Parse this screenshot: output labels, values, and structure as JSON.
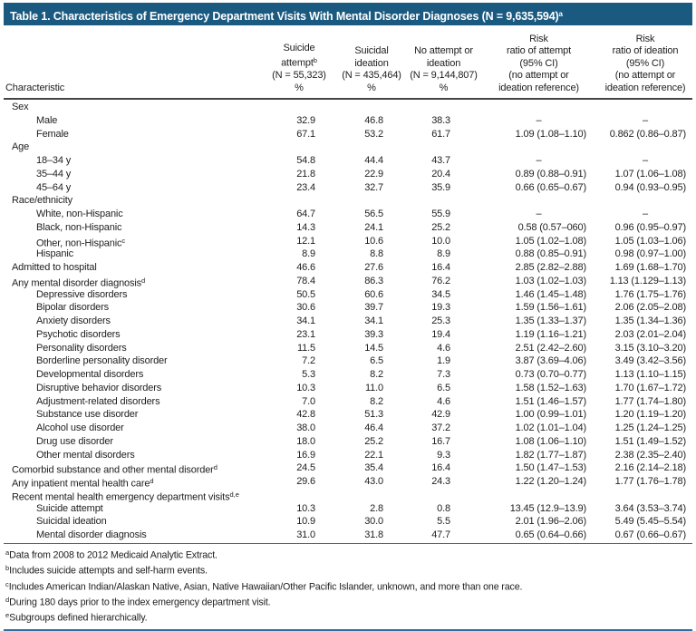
{
  "title": {
    "text": "Table 1. Characteristics of Emergency Department Visits With Mental Disorder Diagnoses (N = 9,635,594)",
    "sup": "a"
  },
  "colors": {
    "title_bar_bg": "#1B5A80",
    "rule_blue": "#2F6F9F",
    "text": "#1E1E1E"
  },
  "columns": [
    {
      "key": "characteristic",
      "lines": [
        "Characteristic"
      ]
    },
    {
      "key": "suicide-attempt-pct",
      "lines": [
        "Suicide",
        "attempt{b}",
        "(N = 55,323)",
        "%"
      ]
    },
    {
      "key": "suicidal-ideation-pct",
      "lines": [
        "Suicidal",
        "ideation",
        "(N = 435,464)",
        "%"
      ]
    },
    {
      "key": "no-attempt-or-ideation-pct",
      "lines": [
        "No attempt or",
        "ideation",
        "(N = 9,144,807)",
        "%"
      ]
    },
    {
      "key": "risk-ratio-attempt",
      "lines": [
        "Risk",
        "ratio of attempt",
        "(95% CI)",
        "(no attempt or",
        "ideation reference)"
      ]
    },
    {
      "key": "risk-ratio-ideation",
      "lines": [
        "Risk",
        "ratio of ideation",
        "(95% CI)",
        "(no attempt or",
        "ideation reference)"
      ]
    }
  ],
  "rows": [
    {
      "label": "Sex",
      "indent": 0,
      "values": [
        "",
        "",
        "",
        "",
        ""
      ]
    },
    {
      "label": "Male",
      "indent": 1,
      "values": [
        "32.9",
        "46.8",
        "38.3",
        "–",
        "–"
      ]
    },
    {
      "label": "Female",
      "indent": 1,
      "values": [
        "67.1",
        "53.2",
        "61.7",
        "1.09 (1.08–1.10)",
        "0.862 (0.86–0.87)"
      ]
    },
    {
      "label": "Age",
      "indent": 0,
      "values": [
        "",
        "",
        "",
        "",
        ""
      ]
    },
    {
      "label": "18–34 y",
      "indent": 1,
      "values": [
        "54.8",
        "44.4",
        "43.7",
        "–",
        "–"
      ]
    },
    {
      "label": "35–44 y",
      "indent": 1,
      "values": [
        "21.8",
        "22.9",
        "20.4",
        "0.89 (0.88–0.91)",
        "1.07 (1.06–1.08)"
      ]
    },
    {
      "label": "45–64 y",
      "indent": 1,
      "values": [
        "23.4",
        "32.7",
        "35.9",
        "0.66 (0.65–0.67)",
        "0.94 (0.93–0.95)"
      ]
    },
    {
      "label": "Race/ethnicity",
      "indent": 0,
      "values": [
        "",
        "",
        "",
        "",
        ""
      ]
    },
    {
      "label": "White, non-Hispanic",
      "indent": 1,
      "values": [
        "64.7",
        "56.5",
        "55.9",
        "–",
        "–"
      ]
    },
    {
      "label": "Black, non-Hispanic",
      "indent": 1,
      "values": [
        "14.3",
        "24.1",
        "25.2",
        "0.58 (0.57–060)",
        "0.96 (0.95–0.97)"
      ]
    },
    {
      "label": "Other, non-Hispanic{c}",
      "indent": 1,
      "values": [
        "12.1",
        "10.6",
        "10.0",
        "1.05 (1.02–1.08)",
        "1.05 (1.03–1.06)"
      ]
    },
    {
      "label": "Hispanic",
      "indent": 1,
      "values": [
        "8.9",
        "8.8",
        "8.9",
        "0.88 (0.85–0.91)",
        "0.98 (0.97–1.00)"
      ]
    },
    {
      "label": "Admitted to hospital",
      "indent": 0,
      "values": [
        "46.6",
        "27.6",
        "16.4",
        "2.85 (2.82–2.88)",
        "1.69 (1.68–1.70)"
      ]
    },
    {
      "label": "Any mental disorder diagnosis{d}",
      "indent": 0,
      "values": [
        "78.4",
        "86.3",
        "76.2",
        "1.03 (1.02–1.03)",
        "1.13 (1.129–1.13)"
      ]
    },
    {
      "label": "Depressive disorders",
      "indent": 1,
      "values": [
        "50.5",
        "60.6",
        "34.5",
        "1.46 (1.45–1.48)",
        "1.76 (1.75–1.76)"
      ]
    },
    {
      "label": "Bipolar disorders",
      "indent": 1,
      "values": [
        "30.6",
        "39.7",
        "19.3",
        "1.59 (1.56–1.61)",
        "2.06 (2.05–2.08)"
      ]
    },
    {
      "label": "Anxiety disorders",
      "indent": 1,
      "values": [
        "34.1",
        "34.1",
        "25.3",
        "1.35 (1.33–1.37)",
        "1.35 (1.34–1.36)"
      ]
    },
    {
      "label": "Psychotic disorders",
      "indent": 1,
      "values": [
        "23.1",
        "39.3",
        "19.4",
        "1.19 (1.16–1.21)",
        "2.03 (2.01–2.04)"
      ]
    },
    {
      "label": "Personality disorders",
      "indent": 1,
      "values": [
        "11.5",
        "14.5",
        "4.6",
        "2.51 (2.42–2.60)",
        "3.15 (3.10–3.20)"
      ]
    },
    {
      "label": "Borderline personality disorder",
      "indent": 1,
      "values": [
        "7.2",
        "6.5",
        "1.9",
        "3.87 (3.69–4.06)",
        "3.49 (3.42–3.56)"
      ]
    },
    {
      "label": "Developmental disorders",
      "indent": 1,
      "values": [
        "5.3",
        "8.2",
        "7.3",
        "0.73 (0.70–0.77)",
        "1.13 (1.10–1.15)"
      ]
    },
    {
      "label": "Disruptive behavior disorders",
      "indent": 1,
      "values": [
        "10.3",
        "11.0",
        "6.5",
        "1.58 (1.52–1.63)",
        "1.70 (1.67–1.72)"
      ]
    },
    {
      "label": "Adjustment-related disorders",
      "indent": 1,
      "values": [
        "7.0",
        "8.2",
        "4.6",
        "1.51 (1.46–1.57)",
        "1.77 (1.74–1.80)"
      ]
    },
    {
      "label": "Substance use disorder",
      "indent": 1,
      "values": [
        "42.8",
        "51.3",
        "42.9",
        "1.00 (0.99–1.01)",
        "1.20 (1.19–1.20)"
      ]
    },
    {
      "label": "Alcohol use disorder",
      "indent": 1,
      "values": [
        "38.0",
        "46.4",
        "37.2",
        "1.02 (1.01–1.04)",
        "1.25 (1.24–1.25)"
      ]
    },
    {
      "label": "Drug use disorder",
      "indent": 1,
      "values": [
        "18.0",
        "25.2",
        "16.7",
        "1.08 (1.06–1.10)",
        "1.51 (1.49–1.52)"
      ]
    },
    {
      "label": "Other mental disorders",
      "indent": 1,
      "values": [
        "16.9",
        "22.1",
        "9.3",
        "1.82 (1.77–1.87)",
        "2.38 (2.35–2.40)"
      ]
    },
    {
      "label": "Comorbid substance and other mental disorder{d}",
      "indent": 0,
      "values": [
        "24.5",
        "35.4",
        "16.4",
        "1.50 (1.47–1.53)",
        "2.16 (2.14–2.18)"
      ]
    },
    {
      "label": "Any inpatient mental health care{d}",
      "indent": 0,
      "values": [
        "29.6",
        "43.0",
        "24.3",
        "1.22 (1.20–1.24)",
        "1.77 (1.76–1.78)"
      ]
    },
    {
      "label": "Recent mental health emergency department visits{d,e}",
      "indent": 0,
      "values": [
        "",
        "",
        "",
        "",
        ""
      ]
    },
    {
      "label": "Suicide attempt",
      "indent": 1,
      "values": [
        "10.3",
        "2.8",
        "0.8",
        "13.45 (12.9–13.9)",
        "3.64 (3.53–3.74)"
      ]
    },
    {
      "label": "Suicidal ideation",
      "indent": 1,
      "values": [
        "10.9",
        "30.0",
        "5.5",
        "2.01 (1.96–2.06)",
        "5.49 (5.45–5.54)"
      ]
    },
    {
      "label": "Mental disorder diagnosis",
      "indent": 1,
      "values": [
        "31.0",
        "31.8",
        "47.7",
        "0.65 (0.64–0.66)",
        "0.67 (0.66–0.67)"
      ]
    }
  ],
  "footnotes": [
    "{a}Data from 2008 to 2012 Medicaid Analytic Extract.",
    "{b}Includes suicide attempts and self-harm events.",
    "{c}Includes American Indian/Alaskan Native, Asian, Native Hawaiian/Other Pacific Islander, unknown, and more than one race.",
    "{d}During 180 days prior to the index emergency department visit.",
    "{e}Subgroups defined hierarchically."
  ]
}
